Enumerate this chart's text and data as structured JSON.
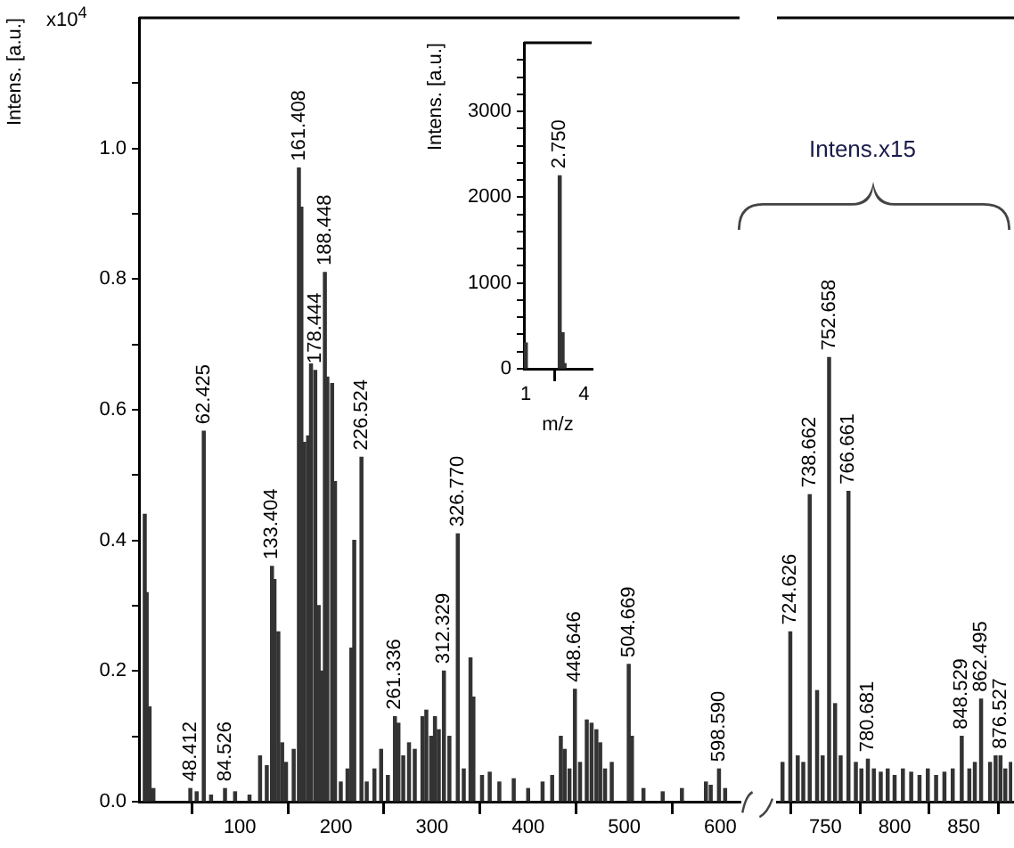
{
  "chart_data": [
    {
      "type": "bar",
      "ylabel": "Intens. [a.u.]",
      "color": "#333333",
      "x": [
        1,
        3,
        6,
        10,
        48.412,
        55,
        62.425,
        70,
        84.526,
        95,
        110,
        121,
        128,
        133.404,
        136,
        140,
        144,
        148,
        156,
        161.408,
        164,
        167,
        171,
        174,
        178.444,
        182,
        185,
        188.448,
        191,
        196,
        199,
        205,
        212,
        216,
        219,
        226.524,
        232,
        240,
        247,
        254,
        261.336,
        265,
        270,
        276,
        282,
        290,
        294,
        299,
        303,
        307,
        312.329,
        318,
        326.77,
        333,
        340,
        343,
        352,
        360,
        370,
        385,
        400,
        415,
        425,
        434,
        438,
        443,
        448.646,
        454,
        461,
        466,
        471,
        475,
        480,
        487,
        504.669,
        508,
        520,
        540,
        560,
        585,
        590,
        598.59,
        605
      ],
      "values": [
        0.44,
        0.32,
        0.145,
        0.02,
        0.02,
        0.015,
        0.567,
        0.01,
        0.02,
        0.015,
        0.01,
        0.07,
        0.055,
        0.36,
        0.34,
        0.26,
        0.09,
        0.06,
        0.08,
        0.97,
        0.91,
        0.55,
        0.56,
        0.67,
        0.66,
        0.3,
        0.2,
        0.81,
        0.65,
        0.64,
        0.49,
        0.03,
        0.05,
        0.235,
        0.4,
        0.527,
        0.03,
        0.05,
        0.08,
        0.04,
        0.13,
        0.12,
        0.07,
        0.09,
        0.08,
        0.13,
        0.14,
        0.1,
        0.13,
        0.11,
        0.2,
        0.1,
        0.41,
        0.05,
        0.22,
        0.16,
        0.04,
        0.045,
        0.03,
        0.035,
        0.02,
        0.03,
        0.04,
        0.1,
        0.08,
        0.05,
        0.172,
        0.06,
        0.125,
        0.12,
        0.11,
        0.09,
        0.05,
        0.06,
        0.21,
        0.1,
        0.02,
        0.015,
        0.02,
        0.03,
        0.025,
        0.05,
        0.02
      ],
      "xlim": [
        -5,
        620
      ],
      "xticks": [
        100,
        200,
        300,
        400,
        500,
        600
      ],
      "ylim": [
        0,
        1.2
      ],
      "yticks": [
        {
          "value": 0,
          "label": "0.0"
        },
        {
          "value": 0.1,
          "label": null
        },
        {
          "value": 0.2,
          "label": "0.2"
        },
        {
          "value": 0.3,
          "label": null
        },
        {
          "value": 0.4,
          "label": "0.4"
        },
        {
          "value": 0.5,
          "label": null
        },
        {
          "value": 0.6,
          "label": "0.6"
        },
        {
          "value": 0.7,
          "label": null
        },
        {
          "value": 0.8,
          "label": "0.8"
        },
        {
          "value": 0.9,
          "label": null
        },
        {
          "value": 1,
          "label": "1.0"
        },
        {
          "value": 1.1,
          "label": null
        }
      ],
      "annotations": [
        "x10$^{4}$",
        {
          "text": "48.412",
          "x": 48.412,
          "y": 0.02
        },
        {
          "text": "62.425",
          "x": 62.425,
          "y": 0.567
        },
        {
          "text": "84.526",
          "x": 84.526,
          "y": 0.02
        },
        {
          "text": "133.404",
          "x": 133.404,
          "y": 0.36
        },
        {
          "text": "161.408",
          "x": 161.408,
          "y": 0.97
        },
        {
          "text": "178.444",
          "x": 178.444,
          "y": 0.66
        },
        {
          "text": "188.448",
          "x": 188.448,
          "y": 0.81
        },
        {
          "text": "226.524",
          "x": 226.524,
          "y": 0.527
        },
        {
          "text": "261.336",
          "x": 261.336,
          "y": 0.13
        },
        {
          "text": "312.329",
          "x": 312.329,
          "y": 0.2
        },
        {
          "text": "326.770",
          "x": 326.77,
          "y": 0.41
        },
        {
          "text": "448.646",
          "x": 448.646,
          "y": 0.172
        },
        {
          "text": "504.669",
          "x": 504.669,
          "y": 0.21
        },
        {
          "text": "598.590",
          "x": 598.59,
          "y": 0.05
        }
      ]
    },
    {
      "type": "bar",
      "color": "#333333",
      "tick_labels": "x",
      "x": [
        719,
        724.626,
        730,
        734,
        738.662,
        744,
        748,
        752.658,
        757,
        761,
        766.661,
        772,
        776,
        780.681,
        785,
        790,
        795,
        800,
        806,
        812,
        818,
        824,
        830,
        836,
        842,
        848.529,
        854,
        858,
        862.495,
        869,
        873,
        876.527,
        880,
        884
      ],
      "values": [
        0.06,
        0.26,
        0.07,
        0.06,
        0.47,
        0.17,
        0.07,
        0.68,
        0.15,
        0.07,
        0.475,
        0.06,
        0.05,
        0.065,
        0.05,
        0.045,
        0.05,
        0.04,
        0.05,
        0.045,
        0.04,
        0.05,
        0.04,
        0.045,
        0.05,
        0.1,
        0.05,
        0.06,
        0.157,
        0.06,
        0.07,
        0.07,
        0.05,
        0.06
      ],
      "xlim": [
        715,
        885
      ],
      "xticks": [
        750,
        800,
        850
      ],
      "ylim": [
        0,
        1.2
      ],
      "annotations": [
        "Intens.x15",
        {
          "text": "724.626",
          "x": 724.626,
          "y": 0.26
        },
        {
          "text": "738.662",
          "x": 738.662,
          "y": 0.47
        },
        {
          "text": "752.658",
          "x": 752.658,
          "y": 0.68
        },
        {
          "text": "766.661",
          "x": 766.661,
          "y": 0.475
        },
        {
          "text": "780.681",
          "x": 780.681,
          "y": 0.065
        },
        {
          "text": "848.529",
          "x": 848.529,
          "y": 0.1
        },
        {
          "text": "862.495",
          "x": 862.495,
          "y": 0.157
        },
        {
          "text": "876.527",
          "x": 876.527,
          "y": 0.07
        }
      ]
    },
    {
      "type": "bar",
      "color": "#333333",
      "xlabel": "m/z",
      "ylabel": "Intens. [a.u.]",
      "x": [
        1,
        2.75,
        2.9,
        3.0
      ],
      "values": [
        300,
        2250,
        420,
        60
      ],
      "xlim": [
        0.9,
        4.4
      ],
      "xticks": [
        1,
        4
      ],
      "ylim": [
        0,
        3800
      ],
      "yticks": [
        0,
        {
          "value": 200,
          "label": null
        },
        {
          "value": 400,
          "label": null
        },
        {
          "value": 600,
          "label": null
        },
        {
          "value": 800,
          "label": null
        },
        1000,
        {
          "value": 1200,
          "label": null
        },
        {
          "value": 1400,
          "label": null
        },
        {
          "value": 1600,
          "label": null
        },
        {
          "value": 1800,
          "label": null
        },
        2000,
        {
          "value": 2200,
          "label": null
        },
        {
          "value": 2400,
          "label": null
        },
        {
          "value": 2600,
          "label": null
        },
        {
          "value": 2800,
          "label": null
        },
        3000,
        {
          "value": 3200,
          "label": null
        },
        {
          "value": 3400,
          "label": null
        },
        {
          "value": 3600,
          "label": null
        }
      ],
      "annotations": [
        {
          "text": "2.750",
          "x": 2.75,
          "y": 2250
        }
      ]
    }
  ]
}
